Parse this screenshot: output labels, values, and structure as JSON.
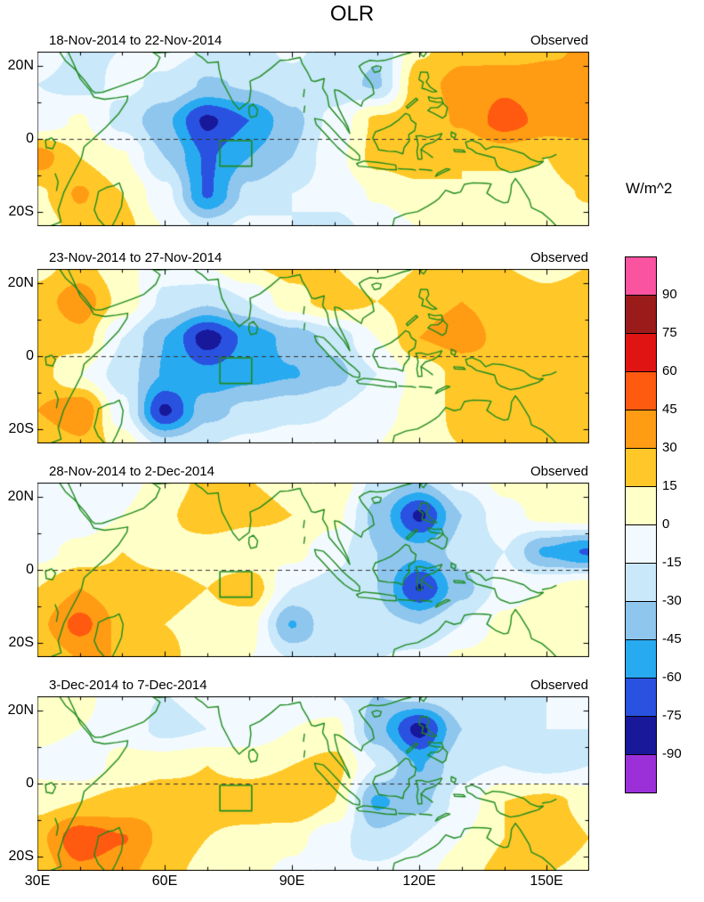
{
  "title": "OLR",
  "panels": [
    {
      "date_range": "18-Nov-2014 to 22-Nov-2014",
      "source_label": "Observed"
    },
    {
      "date_range": "23-Nov-2014 to 27-Nov-2014",
      "source_label": "Observed"
    },
    {
      "date_range": "28-Nov-2014 to 2-Dec-2014",
      "source_label": "Observed"
    },
    {
      "date_range": "3-Dec-2014 to 7-Dec-2014",
      "source_label": "Observed"
    }
  ],
  "axes": {
    "x_tick_labels": [
      "30E",
      "60E",
      "90E",
      "120E",
      "150E"
    ],
    "x_tick_lons": [
      30,
      60,
      90,
      120,
      150
    ],
    "y_tick_labels": [
      "20N",
      "0",
      "20S"
    ],
    "y_tick_lats": [
      20,
      0,
      -20
    ]
  },
  "colorbar": {
    "unit_label": "W/m^2",
    "tick_labels": [
      "90",
      "75",
      "60",
      "45",
      "30",
      "15",
      "0",
      "-15",
      "-30",
      "-45",
      "-60",
      "-75",
      "-90"
    ],
    "cell_colors_top_to_bottom": [
      "#fa53a0",
      "#9b1b1b",
      "#e11414",
      "#ff5a0f",
      "#ff9c14",
      "#ffc828",
      "#ffffc8",
      "#f2faff",
      "#c9e8fa",
      "#8fc6ee",
      "#28aaf0",
      "#2a52e0",
      "#18189b",
      "#9b30d9"
    ]
  },
  "chart_data": {
    "type": "heatmap",
    "units": "W/m^2",
    "lon_range": [
      30,
      160
    ],
    "lat_range": [
      -24,
      24
    ],
    "levels": [
      -90,
      -75,
      -60,
      -45,
      -30,
      -15,
      0,
      15,
      30,
      45,
      60,
      75,
      90
    ],
    "level_colors_low_to_high": [
      "#9b30d9",
      "#18189b",
      "#2a52e0",
      "#28aaf0",
      "#8fc6ee",
      "#c9e8fa",
      "#f2faff",
      "#ffffc8",
      "#ffc828",
      "#ff9c14",
      "#ff5a0f",
      "#e11414",
      "#9b1b1b",
      "#fa53a0"
    ],
    "grid_lons": [
      30,
      40,
      50,
      60,
      70,
      80,
      90,
      100,
      110,
      120,
      130,
      140,
      150,
      160
    ],
    "grid_lats": [
      25,
      15,
      5,
      -5,
      -15,
      -25
    ],
    "box_region": {
      "lon_min": 73,
      "lon_max": 80.5,
      "lat_min": -7.5,
      "lat_max": -0.5
    },
    "panels": [
      {
        "title": "18-Nov-2014 to 22-Nov-2014",
        "label": "Observed",
        "values": [
          [
            -5,
            -18,
            -15,
            -8,
            -15,
            -20,
            -12,
            -22,
            -28,
            12,
            25,
            20,
            28,
            32
          ],
          [
            -15,
            -20,
            -12,
            -18,
            -32,
            -28,
            -20,
            -25,
            -32,
            25,
            35,
            42,
            35,
            30
          ],
          [
            -10,
            2,
            -20,
            -42,
            -78,
            -60,
            -35,
            -10,
            18,
            22,
            32,
            52,
            40,
            35
          ],
          [
            38,
            15,
            2,
            -30,
            -62,
            -45,
            -30,
            -5,
            20,
            25,
            15,
            20,
            15,
            26
          ],
          [
            12,
            32,
            15,
            -10,
            -62,
            -25,
            -15,
            -10,
            2,
            10,
            15,
            5,
            12,
            16
          ],
          [
            5,
            22,
            20,
            0,
            -20,
            -10,
            -15,
            -20,
            -10,
            0,
            10,
            15,
            5,
            10
          ]
        ]
      },
      {
        "title": "23-Nov-2014 to 27-Nov-2014",
        "label": "Observed",
        "values": [
          [
            10,
            20,
            5,
            -10,
            0,
            15,
            20,
            15,
            5,
            15,
            20,
            15,
            10,
            15
          ],
          [
            22,
            40,
            10,
            -18,
            -28,
            -15,
            10,
            22,
            15,
            26,
            30,
            25,
            20,
            25
          ],
          [
            15,
            25,
            -15,
            -45,
            -82,
            -55,
            -40,
            -25,
            0,
            30,
            36,
            26,
            20,
            25
          ],
          [
            22,
            0,
            -22,
            -46,
            -56,
            -50,
            -46,
            -35,
            -15,
            5,
            20,
            26,
            20,
            30
          ],
          [
            30,
            44,
            -10,
            -78,
            -35,
            -26,
            -20,
            -15,
            -5,
            5,
            20,
            25,
            30,
            26
          ],
          [
            15,
            26,
            10,
            -20,
            -15,
            -10,
            -5,
            -10,
            0,
            10,
            15,
            20,
            26,
            20
          ]
        ]
      },
      {
        "title": "28-Nov-2014 to 2-Dec-2014",
        "label": "Observed",
        "values": [
          [
            -12,
            -15,
            -5,
            5,
            20,
            15,
            10,
            15,
            -20,
            -30,
            -10,
            5,
            10,
            5
          ],
          [
            -15,
            -10,
            0,
            12,
            26,
            20,
            15,
            5,
            -35,
            -78,
            -30,
            -5,
            5,
            10
          ],
          [
            -5,
            5,
            15,
            10,
            5,
            0,
            5,
            -10,
            -30,
            -40,
            -25,
            -15,
            -48,
            -62
          ],
          [
            15,
            30,
            20,
            20,
            15,
            26,
            -15,
            -20,
            -30,
            -76,
            -35,
            -10,
            0,
            10
          ],
          [
            26,
            50,
            26,
            15,
            10,
            5,
            -46,
            -15,
            -25,
            -30,
            -15,
            5,
            15,
            10
          ],
          [
            15,
            30,
            30,
            20,
            5,
            0,
            -15,
            -26,
            -15,
            -10,
            5,
            10,
            15,
            5
          ]
        ]
      },
      {
        "title": "3-Dec-2014 to 7-Dec-2014",
        "label": "Observed",
        "values": [
          [
            15,
            5,
            -10,
            -15,
            -10,
            -15,
            -10,
            -15,
            -30,
            -20,
            -15,
            -20,
            -15,
            -10
          ],
          [
            5,
            0,
            -5,
            -20,
            -15,
            -10,
            0,
            5,
            -40,
            -80,
            -30,
            -25,
            -15,
            -15
          ],
          [
            -5,
            -10,
            5,
            10,
            15,
            10,
            15,
            20,
            -15,
            -46,
            -20,
            -15,
            -20,
            -15
          ],
          [
            10,
            15,
            20,
            26,
            20,
            26,
            30,
            15,
            -48,
            -35,
            -10,
            15,
            20,
            10
          ],
          [
            26,
            56,
            46,
            26,
            15,
            10,
            5,
            -10,
            -26,
            -15,
            0,
            15,
            26,
            15
          ],
          [
            20,
            40,
            35,
            20,
            10,
            5,
            -5,
            -15,
            -10,
            -5,
            10,
            20,
            15,
            10
          ]
        ]
      }
    ]
  }
}
